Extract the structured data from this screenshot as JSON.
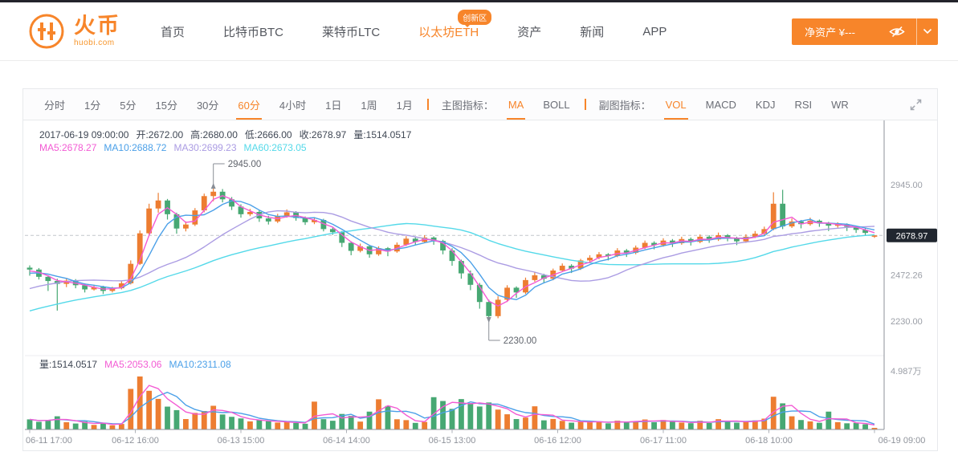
{
  "header": {
    "logo": {
      "brand": "火币",
      "domain": "huobi.com"
    },
    "nav": [
      {
        "id": "home",
        "label": "首页"
      },
      {
        "id": "btc",
        "label": "比特币BTC"
      },
      {
        "id": "ltc",
        "label": "莱特币LTC"
      },
      {
        "id": "eth",
        "label": "以太坊ETH",
        "active": true,
        "badge": "创新区"
      },
      {
        "id": "assets",
        "label": "资产"
      },
      {
        "id": "news",
        "label": "新闻"
      },
      {
        "id": "app",
        "label": "APP"
      }
    ],
    "wallet_button": {
      "label": "净资产 ¥---"
    }
  },
  "toolbar": {
    "timeframes": [
      {
        "label": "分时"
      },
      {
        "label": "1分"
      },
      {
        "label": "5分"
      },
      {
        "label": "15分"
      },
      {
        "label": "30分"
      },
      {
        "label": "60分",
        "active": true
      },
      {
        "label": "4小时"
      },
      {
        "label": "1日"
      },
      {
        "label": "1周"
      },
      {
        "label": "1月"
      }
    ],
    "main_indicator_label": "主图指标：",
    "main_indicators": [
      {
        "label": "MA",
        "active": true
      },
      {
        "label": "BOLL"
      }
    ],
    "sub_indicator_label": "副图指标：",
    "sub_indicators": [
      {
        "label": "VOL",
        "active": true
      },
      {
        "label": "MACD"
      },
      {
        "label": "KDJ"
      },
      {
        "label": "RSI"
      },
      {
        "label": "WR"
      }
    ]
  },
  "chart_info": {
    "datetime": "2017-06-19 09:00:00",
    "ohlc": [
      {
        "k": "开",
        "v": "2672.00"
      },
      {
        "k": "高",
        "v": "2680.00"
      },
      {
        "k": "低",
        "v": "2666.00"
      },
      {
        "k": "收",
        "v": "2678.97"
      },
      {
        "k": "量",
        "v": "1514.0517"
      }
    ],
    "price_mas": [
      {
        "label": "MA5",
        "value": "2678.27",
        "color": "#f35bd4"
      },
      {
        "label": "MA10",
        "value": "2688.72",
        "color": "#4ba0e8"
      },
      {
        "label": "MA30",
        "value": "2699.23",
        "color": "#ab9ce3"
      },
      {
        "label": "MA60",
        "value": "2673.05",
        "color": "#54d9e9"
      }
    ],
    "volume_label": {
      "k": "量",
      "v": "1514.0517"
    },
    "volume_mas": [
      {
        "label": "MA5",
        "value": "2053.06",
        "color": "#f35bd4"
      },
      {
        "label": "MA10",
        "value": "2311.08",
        "color": "#4ba0e8"
      }
    ]
  },
  "chart_data": {
    "type": "candlestick",
    "interval": "60分",
    "colors": {
      "up": "#ed7d31",
      "down": "#47a873",
      "ma5": "#f35bd4",
      "ma10": "#4ba0e8",
      "ma30": "#ab9ce3",
      "ma60": "#54d9e9"
    },
    "y_ticks": [
      {
        "text": "2945.00",
        "price": 2945
      },
      {
        "text": "2472.26",
        "price": 2472.26
      },
      {
        "text": "2230.00",
        "price": 2230
      }
    ],
    "current_price": {
      "text": "2678.97",
      "price": 2678.97
    },
    "volume_axis_label": "4.987万",
    "x_labels": [
      "06-11 17:00",
      "06-12 16:00",
      "06-13 15:00",
      "06-14 14:00",
      "06-15 13:00",
      "06-16 12:00",
      "06-17 11:00",
      "06-18 10:00",
      "06-19 09:00"
    ],
    "ylim": [
      2114,
      3196
    ],
    "annotations": {
      "high": {
        "text": "2945.00",
        "index": 20
      },
      "low": {
        "text": "2230.00",
        "index": 50
      }
    },
    "ma_windows": {
      "ma5": 3,
      "ma10": 5,
      "ma30": 15,
      "ma60": 30,
      "vol5": 3,
      "vol10": 5
    },
    "pre_closes": [
      2055,
      2070,
      2085,
      2100,
      2110,
      2125,
      2140,
      2150,
      2165,
      2180,
      2195,
      2210,
      2220,
      2235,
      2250,
      2265,
      2280,
      2295,
      2310,
      2330,
      2350,
      2370,
      2390,
      2410,
      2425,
      2440,
      2455,
      2470,
      2485,
      2495
    ],
    "candles": [
      [
        2510,
        2522,
        2468,
        2500,
        9500
      ],
      [
        2500,
        2508,
        2448,
        2462,
        7200
      ],
      [
        2462,
        2470,
        2388,
        2440,
        8900
      ],
      [
        2440,
        2452,
        2285,
        2425,
        12400
      ],
      [
        2425,
        2455,
        2408,
        2442,
        6800
      ],
      [
        2442,
        2450,
        2402,
        2418,
        5600
      ],
      [
        2418,
        2428,
        2380,
        2396,
        7400
      ],
      [
        2396,
        2420,
        2390,
        2408,
        4300
      ],
      [
        2408,
        2415,
        2372,
        2388,
        6100
      ],
      [
        2388,
        2410,
        2380,
        2402,
        3900
      ],
      [
        2402,
        2438,
        2396,
        2428,
        5200
      ],
      [
        2428,
        2548,
        2422,
        2530,
        38200
      ],
      [
        2530,
        2705,
        2524,
        2690,
        49870
      ],
      [
        2690,
        2845,
        2682,
        2820,
        36400
      ],
      [
        2820,
        2902,
        2798,
        2862,
        28800
      ],
      [
        2862,
        2870,
        2762,
        2790,
        21500
      ],
      [
        2790,
        2798,
        2688,
        2715,
        18200
      ],
      [
        2715,
        2752,
        2700,
        2736,
        9800
      ],
      [
        2736,
        2822,
        2728,
        2810,
        15600
      ],
      [
        2810,
        2898,
        2800,
        2885,
        17400
      ],
      [
        2885,
        2945,
        2858,
        2908,
        22300
      ],
      [
        2908,
        2922,
        2852,
        2868,
        14100
      ],
      [
        2868,
        2880,
        2812,
        2830,
        11900
      ],
      [
        2830,
        2842,
        2772,
        2790,
        10400
      ],
      [
        2790,
        2818,
        2780,
        2802,
        7600
      ],
      [
        2802,
        2812,
        2750,
        2768,
        8800
      ],
      [
        2768,
        2782,
        2736,
        2752,
        7900
      ],
      [
        2752,
        2792,
        2744,
        2780,
        6500
      ],
      [
        2780,
        2815,
        2772,
        2800,
        7200
      ],
      [
        2800,
        2806,
        2756,
        2770,
        6100
      ],
      [
        2770,
        2778,
        2734,
        2748,
        5400
      ],
      [
        2748,
        2775,
        2738,
        2760,
        26200
      ],
      [
        2760,
        2766,
        2700,
        2712,
        9700
      ],
      [
        2712,
        2724,
        2682,
        2696,
        8200
      ],
      [
        2696,
        2702,
        2618,
        2640,
        14600
      ],
      [
        2640,
        2648,
        2575,
        2598,
        12800
      ],
      [
        2598,
        2636,
        2590,
        2622,
        7400
      ],
      [
        2622,
        2628,
        2562,
        2580,
        16800
      ],
      [
        2580,
        2622,
        2572,
        2612,
        28400
      ],
      [
        2612,
        2618,
        2570,
        2595,
        22100
      ],
      [
        2595,
        2642,
        2588,
        2630,
        9600
      ],
      [
        2630,
        2675,
        2624,
        2662,
        8800
      ],
      [
        2662,
        2670,
        2628,
        2645,
        6200
      ],
      [
        2645,
        2680,
        2638,
        2668,
        7100
      ],
      [
        2668,
        2674,
        2630,
        2650,
        30400
      ],
      [
        2650,
        2656,
        2580,
        2600,
        26800
      ],
      [
        2600,
        2612,
        2520,
        2545,
        19400
      ],
      [
        2545,
        2552,
        2452,
        2480,
        28600
      ],
      [
        2480,
        2495,
        2392,
        2420,
        24800
      ],
      [
        2420,
        2430,
        2295,
        2330,
        21600
      ],
      [
        2330,
        2342,
        2230,
        2256,
        25400
      ],
      [
        2256,
        2360,
        2245,
        2342,
        18700
      ],
      [
        2342,
        2418,
        2330,
        2405,
        14300
      ],
      [
        2405,
        2412,
        2352,
        2380,
        9800
      ],
      [
        2380,
        2458,
        2372,
        2445,
        11200
      ],
      [
        2445,
        2488,
        2436,
        2470,
        21800
      ],
      [
        2470,
        2478,
        2428,
        2452,
        8600
      ],
      [
        2452,
        2505,
        2444,
        2495,
        9900
      ],
      [
        2495,
        2532,
        2488,
        2520,
        8100
      ],
      [
        2520,
        2528,
        2482,
        2505,
        6400
      ],
      [
        2505,
        2556,
        2498,
        2548,
        7800
      ],
      [
        2548,
        2575,
        2540,
        2562,
        6900
      ],
      [
        2562,
        2592,
        2554,
        2580,
        7400
      ],
      [
        2580,
        2586,
        2548,
        2572,
        5800
      ],
      [
        2572,
        2612,
        2565,
        2600,
        8300
      ],
      [
        2600,
        2608,
        2566,
        2588,
        6700
      ],
      [
        2588,
        2626,
        2580,
        2615,
        7600
      ],
      [
        2615,
        2652,
        2608,
        2640,
        9400
      ],
      [
        2640,
        2648,
        2606,
        2628,
        6800
      ],
      [
        2628,
        2664,
        2620,
        2652,
        8900
      ],
      [
        2652,
        2660,
        2618,
        2638,
        7300
      ],
      [
        2638,
        2672,
        2630,
        2660,
        6500
      ],
      [
        2660,
        2668,
        2626,
        2645,
        5900
      ],
      [
        2645,
        2684,
        2638,
        2672,
        8200
      ],
      [
        2672,
        2680,
        2640,
        2658,
        6100
      ],
      [
        2658,
        2694,
        2650,
        2680,
        9700
      ],
      [
        2680,
        2686,
        2648,
        2665,
        7800
      ],
      [
        2665,
        2672,
        2628,
        2648,
        6400
      ],
      [
        2648,
        2685,
        2640,
        2672,
        7700
      ],
      [
        2672,
        2702,
        2665,
        2688,
        8500
      ],
      [
        2688,
        2725,
        2680,
        2712,
        10200
      ],
      [
        2712,
        2905,
        2706,
        2845,
        30800
      ],
      [
        2845,
        2918,
        2712,
        2726,
        24600
      ],
      [
        2726,
        2768,
        2718,
        2752,
        12400
      ],
      [
        2752,
        2760,
        2716,
        2738,
        8900
      ],
      [
        2738,
        2772,
        2730,
        2756,
        7600
      ],
      [
        2756,
        2762,
        2724,
        2742,
        6300
      ],
      [
        2742,
        2750,
        2702,
        2730,
        16800
      ],
      [
        2730,
        2748,
        2720,
        2736,
        6900
      ],
      [
        2736,
        2742,
        2702,
        2724,
        5800
      ],
      [
        2724,
        2730,
        2692,
        2708,
        6200
      ],
      [
        2708,
        2716,
        2678,
        2692,
        4900
      ],
      [
        2672,
        2680,
        2666,
        2678.97,
        1514
      ]
    ]
  }
}
